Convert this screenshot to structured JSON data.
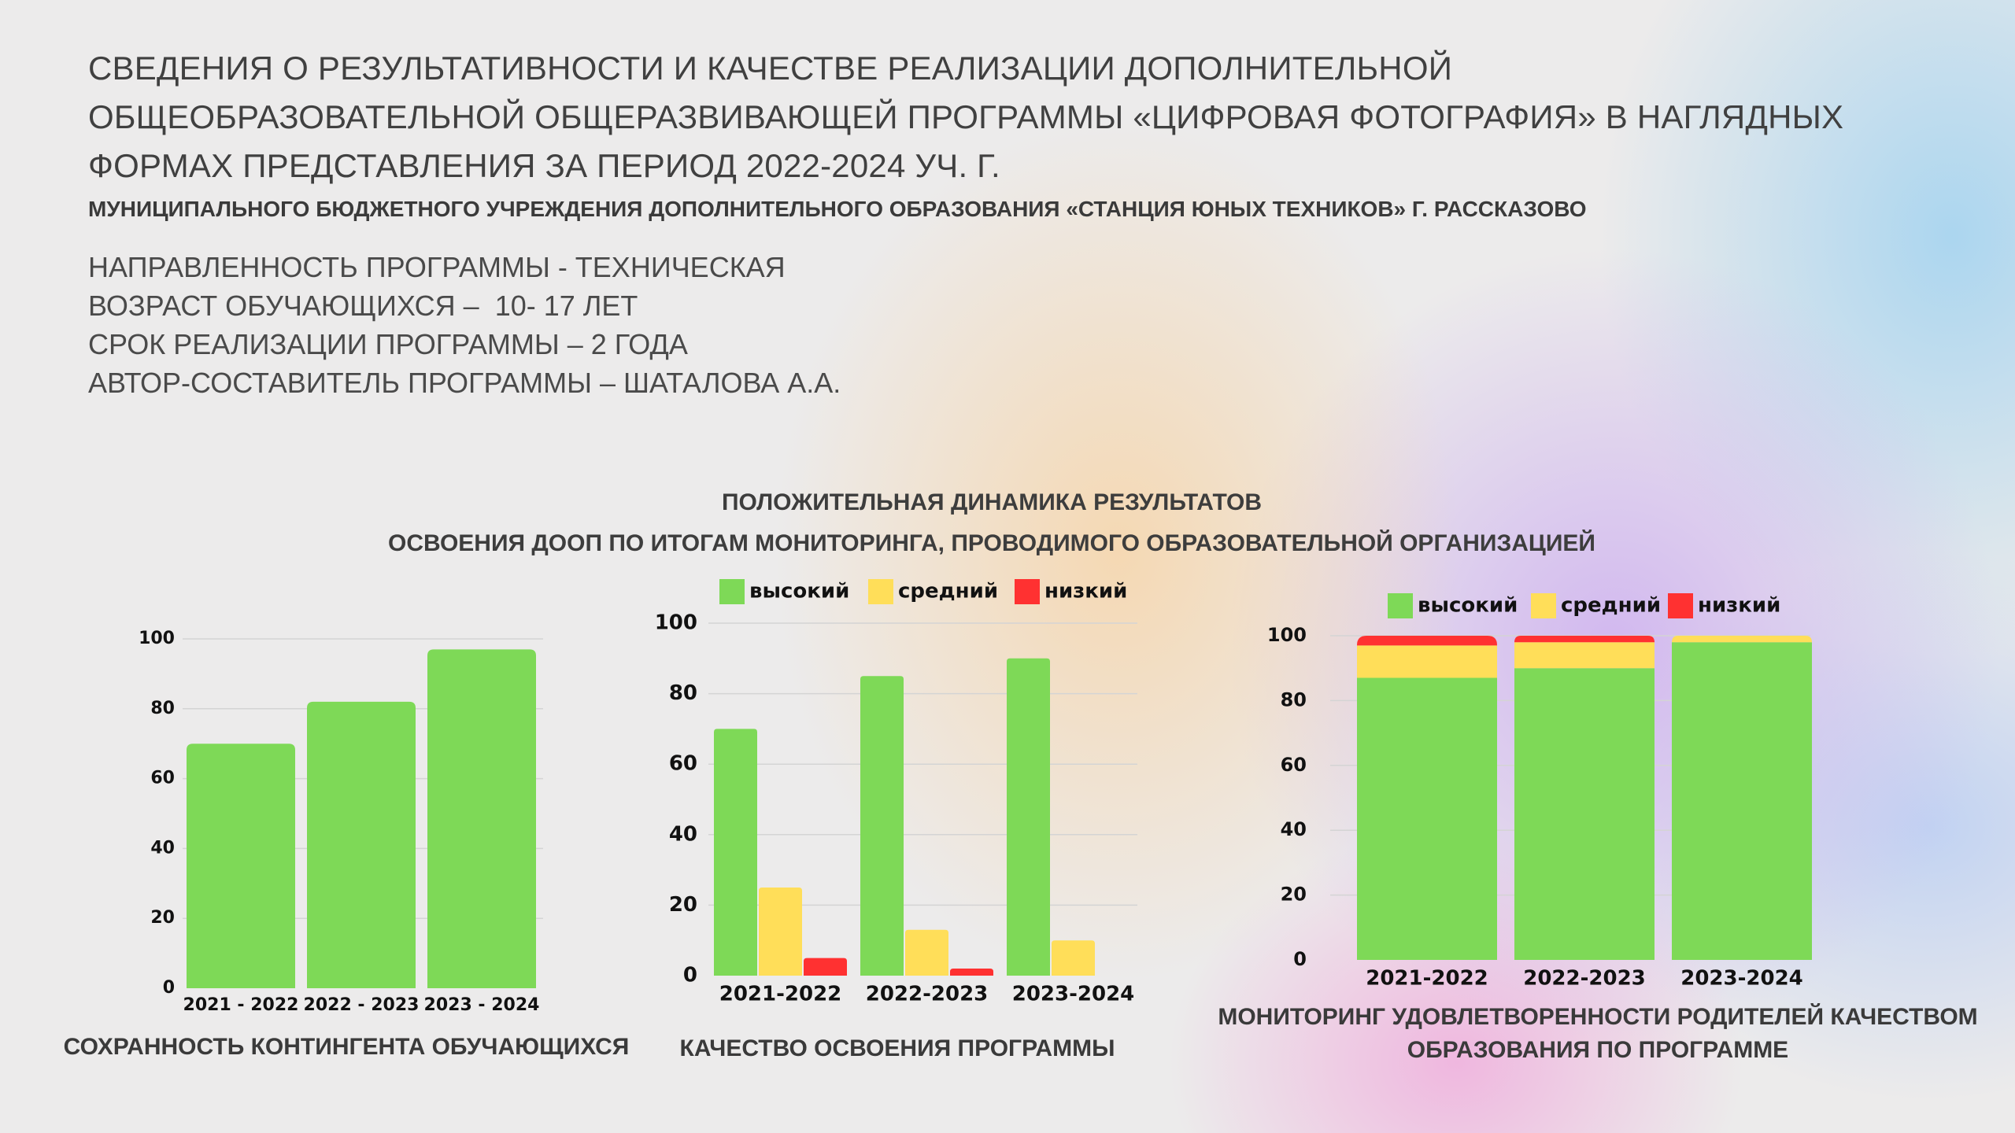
{
  "header": {
    "title_lines": [
      "СВЕДЕНИЯ О РЕЗУЛЬТАТИВНОСТИ И КАЧЕСТВЕ РЕАЛИЗАЦИИ ДОПОЛНИТЕЛЬНОЙ",
      "ОБЩЕОБРАЗОВАТЕЛЬНОЙ ОБЩЕРАЗВИВАЮЩЕЙ ПРОГРАММЫ «ЦИФРОВАЯ ФОТОГРАФИЯ» В НАГЛЯДНЫХ",
      "ФОРМАХ ПРЕДСТАВЛЕНИЯ ЗА ПЕРИОД 2022-2024 УЧ. Г."
    ],
    "subtitle": "МУНИЦИПАЛЬНОГО БЮДЖЕТНОГО УЧРЕЖДЕНИЯ ДОПОЛНИТЕЛЬНОГО ОБРАЗОВАНИЯ «СТАНЦИЯ ЮНЫХ ТЕХНИКОВ» Г. РАССКАЗОВО"
  },
  "info": [
    "НАПРАВЛЕННОСТЬ ПРОГРАММЫ - ТЕХНИЧЕСКАЯ",
    "ВОЗРАСТ ОБУЧАЮЩИХСЯ –  10- 17 ЛЕТ",
    "СРОК РЕАЛИЗАЦИИ ПРОГРАММЫ – 2 ГОДА",
    "АВТОР-СОСТАВИТЕЛЬ ПРОГРАММЫ – ШАТАЛОВА А.А."
  ],
  "center_title": {
    "line1": "ПОЛОЖИТЕЛЬНАЯ ДИНАМИКА РЕЗУЛЬТАТОВ",
    "line2": "ОСВОЕНИЯ ДООП ПО ИТОГАМ МОНИТОРИНГА, ПРОВОДИМОГО ОБРАЗОВАТЕЛЬНОЙ ОРГАНИЗАЦИЕЙ"
  },
  "colors": {
    "green": "#7ed957",
    "yellow": "#ffde59",
    "red": "#ff3131",
    "grid": "#d4d4d4"
  },
  "chart_data": [
    {
      "type": "bar",
      "caption": "СОХРАННОСТЬ КОНТИНГЕНТА ОБУЧАЮЩИХСЯ",
      "categories": [
        "2021 - 2022",
        "2022 - 2023",
        "2023 - 2024"
      ],
      "values": [
        70,
        82,
        97
      ],
      "ylim": [
        0,
        100
      ],
      "yticks": [
        0,
        20,
        40,
        60,
        80,
        100
      ],
      "grid": true,
      "legend": false
    },
    {
      "type": "bar",
      "caption": "КАЧЕСТВО ОСВОЕНИЯ ПРОГРАММЫ",
      "categories": [
        "2021-2022",
        "2022-2023",
        "2023-2024"
      ],
      "series": [
        {
          "name": "высокий",
          "color": "#7ed957",
          "values": [
            70,
            85,
            90
          ]
        },
        {
          "name": "средний",
          "color": "#ffde59",
          "values": [
            25,
            13,
            10
          ]
        },
        {
          "name": "низкий",
          "color": "#ff3131",
          "values": [
            5,
            2,
            0
          ]
        }
      ],
      "ylim": [
        0,
        100
      ],
      "yticks": [
        0,
        20,
        40,
        60,
        80,
        100
      ],
      "grid": true,
      "legend": "top"
    },
    {
      "type": "bar",
      "stacked": true,
      "caption": "МОНИТОРИНГ УДОВЛЕТВОРЕННОСТИ РОДИТЕЛЕЙ КАЧЕСТВОМ ОБРАЗОВАНИЯ ПО ПРОГРАММЕ",
      "categories": [
        "2021-2022",
        "2022-2023",
        "2023-2024"
      ],
      "series": [
        {
          "name": "высокий",
          "color": "#7ed957",
          "values": [
            87,
            90,
            98
          ]
        },
        {
          "name": "средний",
          "color": "#ffde59",
          "values": [
            10,
            8,
            2
          ]
        },
        {
          "name": "низкий",
          "color": "#ff3131",
          "values": [
            3,
            2,
            0
          ]
        }
      ],
      "ylim": [
        0,
        100
      ],
      "yticks": [
        0,
        20,
        40,
        60,
        80,
        100
      ],
      "grid": true,
      "legend": "top"
    }
  ]
}
